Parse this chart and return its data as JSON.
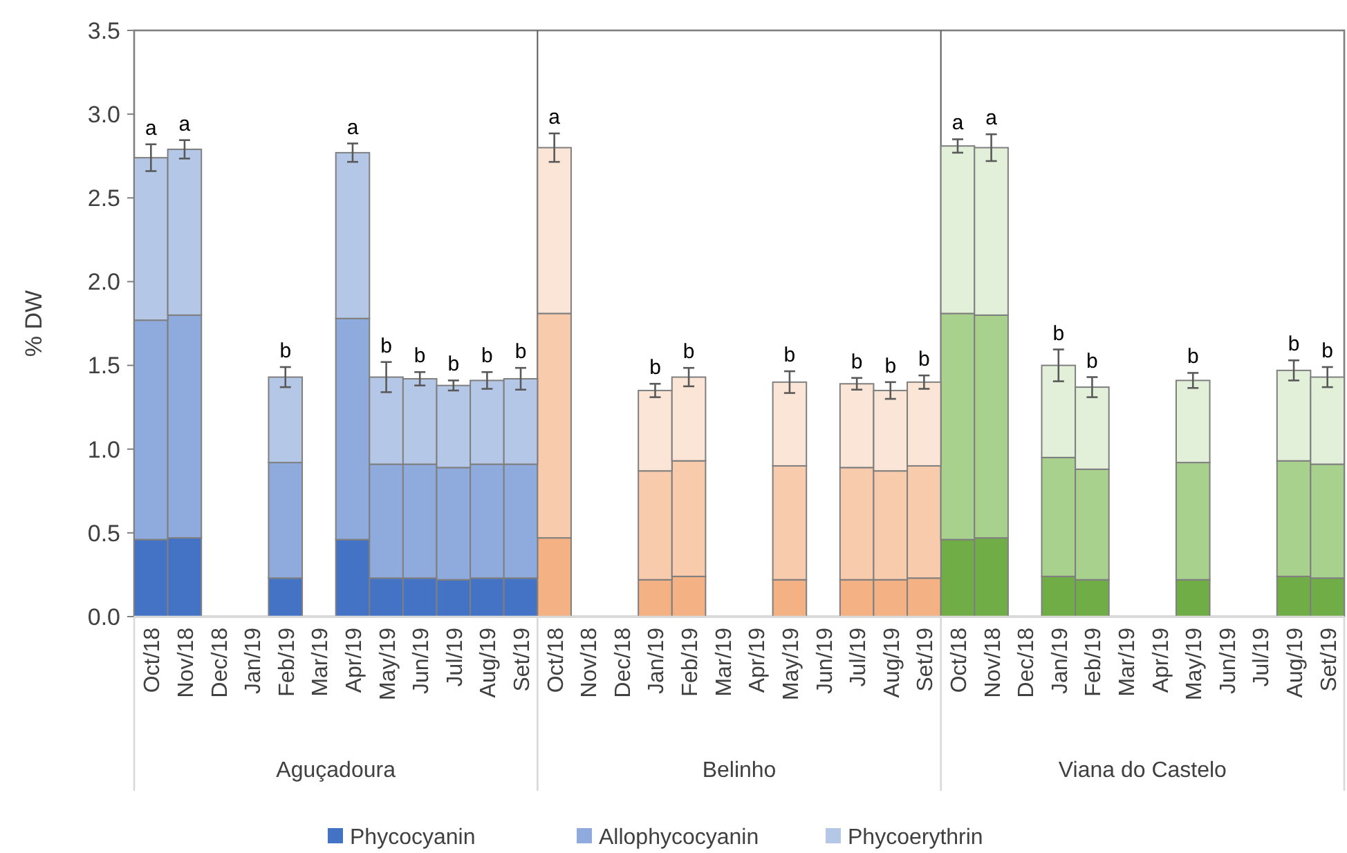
{
  "chart_data": {
    "type": "bar",
    "stacked": true,
    "ylabel": "% DW",
    "categories": [
      "Oct/18",
      "Nov/18",
      "Dec/18",
      "Jan/19",
      "Feb/19",
      "Mar/19",
      "Apr/19",
      "May/19",
      "Jun/19",
      "Jul/19",
      "Aug/19",
      "Set/19",
      "Oct/18",
      "Nov/18",
      "Dec/18",
      "Jan/19",
      "Feb/19",
      "Mar/19",
      "Apr/19",
      "May/19",
      "Jun/19",
      "Jul/19",
      "Aug/19",
      "Set/19",
      "Oct/18",
      "Nov/18",
      "Dec/18",
      "Jan/19",
      "Feb/19",
      "Mar/19",
      "Apr/19",
      "May/19",
      "Jun/19",
      "Jul/19",
      "Aug/19",
      "Set/19"
    ],
    "series": [
      {
        "name": "Phycocyanin",
        "color": "#4472c4",
        "values": [
          0.46,
          0.47,
          null,
          null,
          0.23,
          null,
          0.46,
          0.23,
          0.23,
          0.22,
          0.23,
          0.23,
          0.47,
          null,
          null,
          0.22,
          0.24,
          null,
          null,
          0.22,
          null,
          0.22,
          0.22,
          0.23,
          0.46,
          0.47,
          null,
          0.24,
          0.22,
          null,
          null,
          0.22,
          null,
          null,
          0.24,
          0.23
        ],
        "colors": [
          "#4472c4",
          "#4472c4",
          null,
          null,
          "#4472c4",
          null,
          "#4472c4",
          "#4472c4",
          "#4472c4",
          "#4472c4",
          "#4472c4",
          "#4472c4",
          "#f4b183",
          null,
          null,
          "#f4b183",
          "#f4b183",
          null,
          null,
          "#f4b183",
          null,
          "#f4b183",
          "#f4b183",
          "#f4b183",
          "#70ad47",
          "#70ad47",
          null,
          "#70ad47",
          "#70ad47",
          null,
          null,
          "#70ad47",
          null,
          null,
          "#70ad47",
          "#70ad47"
        ]
      },
      {
        "name": "Allophycocyanin",
        "color": "#8faadc",
        "values": [
          1.31,
          1.33,
          null,
          null,
          0.69,
          null,
          1.32,
          0.68,
          0.68,
          0.67,
          0.68,
          0.68,
          1.34,
          null,
          null,
          0.65,
          0.69,
          null,
          null,
          0.68,
          null,
          0.67,
          0.65,
          0.67,
          1.35,
          1.33,
          null,
          0.71,
          0.66,
          null,
          null,
          0.7,
          null,
          null,
          0.69,
          0.68
        ],
        "colors": [
          "#8faadc",
          "#8faadc",
          null,
          null,
          "#8faadc",
          null,
          "#8faadc",
          "#8faadc",
          "#8faadc",
          "#8faadc",
          "#8faadc",
          "#8faadc",
          "#f8cbad",
          null,
          null,
          "#f8cbad",
          "#f8cbad",
          null,
          null,
          "#f8cbad",
          null,
          "#f8cbad",
          "#f8cbad",
          "#f8cbad",
          "#a9d18e",
          "#a9d18e",
          null,
          "#a9d18e",
          "#a9d18e",
          null,
          null,
          "#a9d18e",
          null,
          null,
          "#a9d18e",
          "#a9d18e"
        ]
      },
      {
        "name": "Phycoerythrin",
        "color": "#b4c7e7",
        "values": [
          0.97,
          0.99,
          null,
          null,
          0.51,
          null,
          0.99,
          0.52,
          0.51,
          0.49,
          0.5,
          0.51,
          0.99,
          null,
          null,
          0.48,
          0.5,
          null,
          null,
          0.5,
          null,
          0.5,
          0.48,
          0.5,
          1.0,
          1.0,
          null,
          0.55,
          0.49,
          null,
          null,
          0.49,
          null,
          null,
          0.54,
          0.52
        ],
        "colors": [
          "#b4c7e7",
          "#b4c7e7",
          null,
          null,
          "#b4c7e7",
          null,
          "#b4c7e7",
          "#b4c7e7",
          "#b4c7e7",
          "#b4c7e7",
          "#b4c7e7",
          "#b4c7e7",
          "#fbe5d6",
          null,
          null,
          "#fbe5d6",
          "#fbe5d6",
          null,
          null,
          "#fbe5d6",
          null,
          "#fbe5d6",
          "#fbe5d6",
          "#fbe5d6",
          "#e2f0d9",
          "#e2f0d9",
          null,
          "#e2f0d9",
          "#e2f0d9",
          null,
          null,
          "#e2f0d9",
          null,
          null,
          "#e2f0d9",
          "#e2f0d9"
        ],
        "errors": [
          0.08,
          0.055,
          null,
          null,
          0.06,
          null,
          0.055,
          0.09,
          0.04,
          0.03,
          0.05,
          0.065,
          0.085,
          null,
          null,
          0.04,
          0.055,
          null,
          null,
          0.065,
          null,
          0.035,
          0.05,
          0.04,
          0.04,
          0.08,
          null,
          0.095,
          0.06,
          null,
          null,
          0.045,
          null,
          null,
          0.06,
          0.06
        ],
        "value_labels": [
          "a",
          "a",
          null,
          null,
          "b",
          null,
          "a",
          "b",
          "b",
          "b",
          "b",
          "b",
          "a",
          null,
          null,
          "b",
          "b",
          null,
          null,
          "b",
          null,
          "b",
          "b",
          "b",
          "a",
          "a",
          null,
          "b",
          "b",
          null,
          null,
          "b",
          null,
          null,
          "b",
          "b"
        ]
      }
    ],
    "ylim": [
      0,
      3.5
    ],
    "yticks": [
      {
        "value": 0,
        "label": "0.0"
      },
      {
        "value": 0.5,
        "label": "0.5"
      },
      {
        "value": 1,
        "label": "1.0"
      },
      {
        "value": 1.5,
        "label": "1.5"
      },
      {
        "value": 2,
        "label": "2.0"
      },
      {
        "value": 2.5,
        "label": "2.5"
      },
      {
        "value": 3,
        "label": "3.0"
      },
      {
        "value": 3.5,
        "label": "3.5"
      }
    ],
    "annotations": [
      "Aguçadoura",
      "Belinho",
      "Viana do Castelo"
    ],
    "legend": "bottom"
  }
}
